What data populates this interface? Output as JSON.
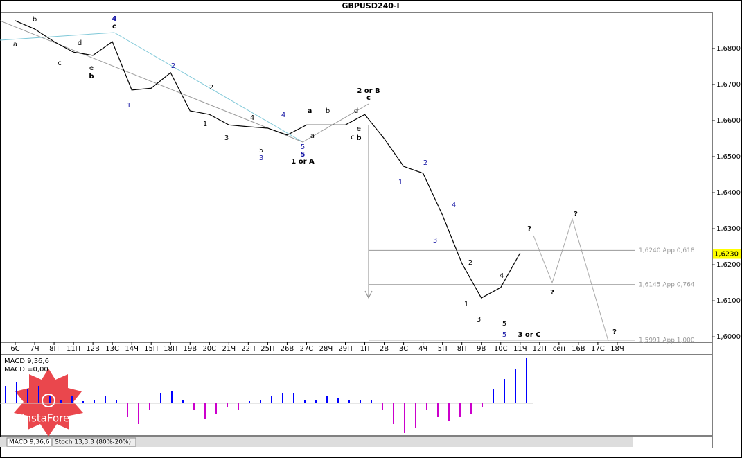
{
  "chart_data": {
    "type": "line",
    "title": "GBPUSD240-I",
    "categories": [
      "6С",
      "7Ч",
      "8П",
      "11П",
      "12В",
      "13С",
      "14Ч",
      "15П",
      "18П",
      "19В",
      "20С",
      "21Ч",
      "22П",
      "25П",
      "26В",
      "27С",
      "28Ч",
      "29П",
      "1П",
      "2В",
      "3С",
      "4Ч",
      "5П",
      "8П",
      "9В",
      "10С",
      "11Ч",
      "12П",
      "сен",
      "16В",
      "17С",
      "18Ч"
    ],
    "series": [
      {
        "name": "GBPUSD240-I",
        "color": "#000000",
        "values": [
          1.6877,
          1.6854,
          1.6819,
          1.679,
          1.6781,
          1.6819,
          1.6685,
          1.669,
          1.6733,
          1.6627,
          1.6617,
          1.6588,
          1.6583,
          1.6579,
          1.656,
          1.6588,
          1.6588,
          1.6588,
          1.6617,
          1.655,
          1.6473,
          1.6454,
          1.6338,
          1.6204,
          1.6108,
          1.6137,
          1.6233,
          null,
          null,
          null,
          null,
          null
        ]
      }
    ],
    "ylim": [
      1.5985,
      1.69
    ],
    "yticks": [
      {
        "value": 1.6,
        "label": "1,6000"
      },
      {
        "value": 1.61,
        "label": "1,6100"
      },
      {
        "value": 1.62,
        "label": "1,6200"
      },
      {
        "value": 1.63,
        "label": "1,6300"
      },
      {
        "value": 1.64,
        "label": "1,6400"
      },
      {
        "value": 1.65,
        "label": "1,6500"
      },
      {
        "value": 1.66,
        "label": "1,6600"
      },
      {
        "value": 1.67,
        "label": "1,6700"
      },
      {
        "value": 1.68,
        "label": "1,6800"
      }
    ],
    "current_price": {
      "value": 1.623,
      "label": "1,6230"
    },
    "levels": [
      {
        "value": 1.624,
        "label": "1,6240 App 0,618"
      },
      {
        "value": 1.6145,
        "label": "1,6145 App 0,764"
      },
      {
        "value": 1.5991,
        "label": "1,5991 App 1,000"
      }
    ],
    "annotations": [
      {
        "text": "a",
        "color": "#000000"
      },
      {
        "text": "b",
        "color": "#000000"
      },
      {
        "text": "4",
        "color": "#1a1aa6"
      },
      {
        "text": "c",
        "color": "#000000"
      },
      {
        "text": "c",
        "color": "#000000"
      },
      {
        "text": "d",
        "color": "#000000"
      },
      {
        "text": "e",
        "color": "#000000"
      },
      {
        "text": "b",
        "color": "#000000"
      },
      {
        "text": "1",
        "color": "#1a1aa6"
      },
      {
        "text": "2",
        "color": "#1a1aa6"
      },
      {
        "text": "2",
        "color": "#000000"
      },
      {
        "text": "1",
        "color": "#000000"
      },
      {
        "text": "3",
        "color": "#000000"
      },
      {
        "text": "4",
        "color": "#000000"
      },
      {
        "text": "4",
        "color": "#1a1aa6"
      },
      {
        "text": "5",
        "color": "#000000"
      },
      {
        "text": "3",
        "color": "#1a1aa6"
      },
      {
        "text": "5",
        "color": "#1a1aa6"
      },
      {
        "text": "5",
        "color": "#1a1aa6"
      },
      {
        "text": "1 or A",
        "color": "#000000"
      },
      {
        "text": "a",
        "color": "#000000"
      },
      {
        "text": "a",
        "color": "#000000"
      },
      {
        "text": "b",
        "color": "#000000"
      },
      {
        "text": "c",
        "color": "#000000"
      },
      {
        "text": "b",
        "color": "#000000"
      },
      {
        "text": "d",
        "color": "#000000"
      },
      {
        "text": "e",
        "color": "#000000"
      },
      {
        "text": "2 or B",
        "color": "#000000"
      },
      {
        "text": "c",
        "color": "#000000"
      },
      {
        "text": "1",
        "color": "#1a1aa6"
      },
      {
        "text": "2",
        "color": "#1a1aa6"
      },
      {
        "text": "3",
        "color": "#1a1aa6"
      },
      {
        "text": "4",
        "color": "#1a1aa6"
      },
      {
        "text": "2",
        "color": "#000000"
      },
      {
        "text": "1",
        "color": "#000000"
      },
      {
        "text": "3",
        "color": "#000000"
      },
      {
        "text": "4",
        "color": "#000000"
      },
      {
        "text": "5",
        "color": "#000000"
      },
      {
        "text": "5",
        "color": "#1a1aa6"
      },
      {
        "text": "3 or C",
        "color": "#000000"
      },
      {
        "text": "?",
        "color": "#000000"
      },
      {
        "text": "?",
        "color": "#000000"
      },
      {
        "text": "?",
        "color": "#000000"
      },
      {
        "text": "?",
        "color": "#000000"
      }
    ],
    "macd": {
      "label": "MACD 9,36,6",
      "value_label": "MACD =0,00",
      "ylim": [
        -4.6,
        6.7
      ],
      "positive_color": "#0000ff",
      "negative_color": "#cc00cc",
      "values": [
        2.5,
        3,
        2,
        2.5,
        1,
        0.5,
        1,
        0.3,
        0.5,
        1,
        0.5,
        -2,
        -3,
        -1,
        1.5,
        1.8,
        0.5,
        -1,
        -2.3,
        -1.5,
        -0.5,
        -1,
        0.3,
        0.5,
        1,
        1.5,
        1.5,
        0.5,
        0.5,
        1,
        0.8,
        0.5,
        0.5,
        0.5,
        -1,
        -3,
        -4.3,
        -3.5,
        -1,
        -2,
        -2.6,
        -2,
        -1.5,
        -0.5,
        2,
        3.5,
        5,
        6.5
      ]
    },
    "tabs": [
      "MACD 9,36,6",
      "Stoch 13,3,3 (80%-20%)"
    ],
    "logo": "InstaForex"
  }
}
